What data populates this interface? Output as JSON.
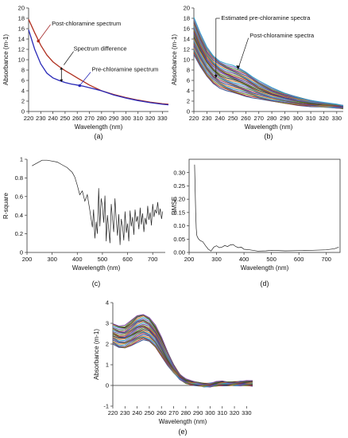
{
  "chart_data": [
    {
      "id": "a",
      "type": "line",
      "panel_label": "(a)",
      "xlabel": "Wavelength (nm)",
      "ylabel": "Absorbance (m-1)",
      "xlim": [
        220,
        335
      ],
      "ylim": [
        0,
        20
      ],
      "xticks": [
        220,
        230,
        240,
        250,
        260,
        270,
        280,
        290,
        300,
        310,
        320,
        330
      ],
      "yticks": [
        0,
        2,
        4,
        6,
        8,
        10,
        12,
        14,
        16,
        18,
        20
      ],
      "series": [
        {
          "name": "Post-chloramine spectrum",
          "color": "#b03020",
          "x": [
            220,
            225,
            230,
            235,
            240,
            245,
            250,
            255,
            260,
            265,
            270,
            280,
            290,
            300,
            310,
            320,
            330,
            335
          ],
          "y": [
            17.8,
            15.2,
            12.8,
            10.9,
            9.6,
            8.7,
            7.9,
            7.2,
            6.5,
            5.8,
            5.1,
            4.0,
            3.3,
            2.7,
            2.2,
            1.8,
            1.5,
            1.4
          ]
        },
        {
          "name": "Pre-chloramine spectrum",
          "color": "#2a2ab8",
          "x": [
            220,
            225,
            230,
            235,
            240,
            245,
            250,
            255,
            260,
            265,
            270,
            280,
            290,
            300,
            310,
            320,
            330,
            335
          ],
          "y": [
            15.8,
            12.0,
            9.2,
            7.4,
            6.5,
            6.0,
            5.6,
            5.3,
            5.1,
            4.9,
            4.6,
            4.0,
            3.2,
            2.6,
            2.1,
            1.7,
            1.4,
            1.3
          ]
        }
      ],
      "annotations": [
        "Post-chloramine spectrum",
        "Spectrum difference",
        "Pre-chloramine spectrum"
      ]
    },
    {
      "id": "b",
      "type": "line",
      "panel_label": "(b)",
      "xlabel": "Wavelength (nm)",
      "ylabel": "Absorbance (m-1)",
      "xlim": [
        220,
        335
      ],
      "ylim": [
        0,
        20
      ],
      "xticks": [
        220,
        230,
        240,
        250,
        260,
        270,
        280,
        290,
        300,
        310,
        320,
        330
      ],
      "yticks": [
        0,
        2,
        4,
        6,
        8,
        10,
        12,
        14,
        16,
        18,
        20
      ],
      "x": [
        220,
        225,
        230,
        235,
        240,
        245,
        250,
        255,
        260,
        265,
        270,
        280,
        290,
        300,
        310,
        320,
        330,
        335
      ],
      "upper": [
        18.2,
        15.0,
        12.4,
        10.8,
        9.8,
        9.2,
        8.8,
        8.3,
        7.7,
        6.8,
        5.9,
        4.5,
        3.5,
        2.8,
        2.2,
        1.7,
        1.3,
        1.1
      ],
      "lower": [
        11.0,
        8.6,
        6.8,
        5.5,
        4.6,
        4.0,
        3.6,
        3.3,
        3.0,
        2.7,
        2.4,
        1.9,
        1.6,
        1.3,
        1.0,
        0.8,
        0.7,
        0.6
      ],
      "annotations": [
        "Estimated pre-chloramine spectra",
        "Post-chloramine spectra"
      ]
    },
    {
      "id": "c",
      "type": "line",
      "panel_label": "(c)",
      "xlabel": "Wavelength (nm)",
      "ylabel": "R-square",
      "xlim": [
        200,
        750
      ],
      "ylim": [
        0.0,
        1.0
      ],
      "xticks": [
        200,
        300,
        400,
        500,
        600,
        700
      ],
      "yticks": [
        0.0,
        0.2,
        0.4,
        0.6,
        0.8,
        1.0
      ],
      "series": [
        {
          "name": "",
          "color": "#222222",
          "x": [
            220,
            240,
            260,
            280,
            300,
            320,
            340,
            360,
            380,
            390,
            400,
            410,
            420,
            430,
            440,
            450,
            455,
            460,
            465,
            470,
            475,
            480,
            485,
            490,
            495,
            500,
            505,
            510,
            515,
            520,
            525,
            530,
            535,
            540,
            545,
            550,
            555,
            560,
            565,
            570,
            575,
            580,
            585,
            590,
            595,
            600,
            605,
            610,
            615,
            620,
            625,
            630,
            635,
            640,
            645,
            650,
            655,
            660,
            665,
            670,
            675,
            680,
            685,
            690,
            695,
            700,
            705,
            710,
            715,
            720,
            725,
            730,
            735,
            740
          ],
          "y": [
            0.93,
            0.96,
            0.99,
            0.99,
            0.98,
            0.97,
            0.94,
            0.91,
            0.86,
            0.81,
            0.72,
            0.62,
            0.66,
            0.55,
            0.62,
            0.45,
            0.36,
            0.27,
            0.46,
            0.15,
            0.33,
            0.2,
            0.69,
            0.28,
            0.58,
            0.5,
            0.32,
            0.61,
            0.12,
            0.4,
            0.25,
            0.1,
            0.52,
            0.36,
            0.22,
            0.58,
            0.34,
            0.18,
            0.41,
            0.08,
            0.36,
            0.28,
            0.13,
            0.44,
            0.21,
            0.31,
            0.12,
            0.45,
            0.28,
            0.38,
            0.19,
            0.46,
            0.33,
            0.39,
            0.25,
            0.48,
            0.3,
            0.42,
            0.22,
            0.37,
            0.3,
            0.5,
            0.35,
            0.43,
            0.29,
            0.52,
            0.38,
            0.46,
            0.42,
            0.54,
            0.4,
            0.47,
            0.36,
            0.44
          ]
        }
      ]
    },
    {
      "id": "d",
      "type": "line",
      "panel_label": "(d)",
      "xlabel": "Wavelength (nm)",
      "ylabel": "RMSE",
      "xlim": [
        200,
        750
      ],
      "ylim": [
        0.0,
        0.35
      ],
      "xticks": [
        200,
        300,
        400,
        500,
        600,
        700
      ],
      "yticks": [
        0.0,
        0.05,
        0.1,
        0.15,
        0.2,
        0.25,
        0.3
      ],
      "ytick_labels": [
        "0.00",
        "0.05",
        "0.10",
        "0.15",
        "0.20",
        "0.25",
        "0.30"
      ],
      "series": [
        {
          "name": "",
          "color": "#222222",
          "x": [
            220,
            222,
            224,
            226,
            228,
            230,
            235,
            240,
            250,
            260,
            270,
            280,
            290,
            300,
            310,
            320,
            330,
            340,
            350,
            360,
            370,
            380,
            390,
            400,
            420,
            450,
            480,
            500,
            550,
            600,
            650,
            700,
            730,
            745
          ],
          "y": [
            0.33,
            0.24,
            0.15,
            0.09,
            0.065,
            0.058,
            0.05,
            0.045,
            0.04,
            0.025,
            0.012,
            0.005,
            0.02,
            0.025,
            0.018,
            0.02,
            0.026,
            0.022,
            0.028,
            0.03,
            0.022,
            0.018,
            0.02,
            0.012,
            0.01,
            0.005,
            0.006,
            0.008,
            0.006,
            0.007,
            0.008,
            0.01,
            0.014,
            0.02
          ]
        }
      ]
    },
    {
      "id": "e",
      "type": "line",
      "panel_label": "(e)",
      "xlabel": "Wavelength (nm)",
      "ylabel": "Absorbance (m-1)",
      "xlim": [
        220,
        335
      ],
      "ylim": [
        -1,
        4
      ],
      "xticks": [
        220,
        230,
        240,
        250,
        260,
        270,
        280,
        290,
        300,
        310,
        320,
        330
      ],
      "yticks": [
        -1,
        0,
        1,
        2,
        3,
        4
      ],
      "x": [
        220,
        225,
        230,
        235,
        240,
        245,
        250,
        255,
        260,
        265,
        270,
        275,
        280,
        285,
        290,
        295,
        300,
        305,
        310,
        315,
        320,
        325,
        330,
        335
      ],
      "upper": [
        3.0,
        2.9,
        2.9,
        3.1,
        3.35,
        3.45,
        3.3,
        2.9,
        2.3,
        1.6,
        1.0,
        0.55,
        0.3,
        0.18,
        0.12,
        0.08,
        0.1,
        0.16,
        0.18,
        0.14,
        0.16,
        0.2,
        0.2,
        0.2
      ],
      "lower": [
        2.0,
        1.8,
        1.8,
        1.95,
        2.1,
        2.2,
        2.1,
        1.85,
        1.45,
        1.0,
        0.6,
        0.3,
        0.12,
        0.05,
        0.0,
        -0.05,
        -0.05,
        0.0,
        0.02,
        0.0,
        0.0,
        0.0,
        0.02,
        0.0
      ]
    }
  ],
  "palette": [
    "#2e4a8c",
    "#b02828",
    "#6b8f28",
    "#6a3d9a",
    "#2a9db8",
    "#e07b24",
    "#1f4e9c",
    "#a52a5a",
    "#3f8f3f",
    "#8a5ab8",
    "#26a0c8",
    "#d0762a",
    "#2b2b2b",
    "#4f7a1c",
    "#7b3fa0"
  ]
}
